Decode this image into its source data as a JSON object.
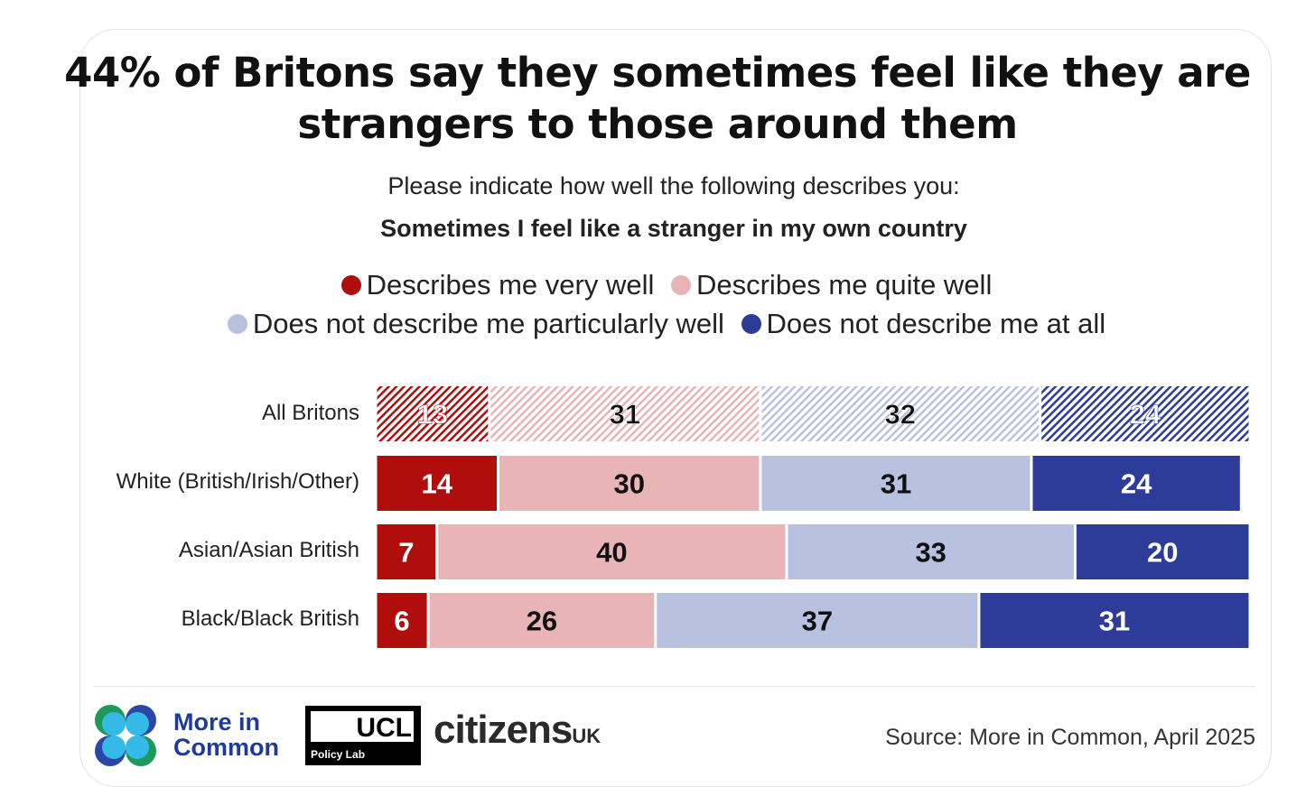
{
  "title_line1": "44% of Britons say they sometimes feel like they are",
  "title_line2": "strangers to those around them",
  "question": "Please indicate how well the following describes you:",
  "statement": "Sometimes I feel like a stranger in my own country",
  "source": "Source: More in Common, April 2025",
  "logos": {
    "mic_line1": "More in",
    "mic_line2": "Common",
    "ucl": "UCL",
    "ucl_sub": "Policy Lab",
    "citizens": "citizens",
    "citizens_uk": "UK"
  },
  "chart_data": {
    "type": "bar",
    "orientation": "horizontal-stacked-100",
    "categories": [
      "All Britons",
      "White (British/Irish/Other)",
      "Asian/Asian British",
      "Black/Black British"
    ],
    "series": [
      {
        "name": "Describes me very well",
        "color": "#b00d0d",
        "label_color": "#ffffff",
        "values": [
          13,
          14,
          7,
          6
        ]
      },
      {
        "name": "Describes me quite well",
        "color": "#e8b4b6",
        "label_color": "#111111",
        "values": [
          31,
          30,
          40,
          26
        ]
      },
      {
        "name": "Does not describe me particularly well",
        "color": "#b9c1e1",
        "label_color": "#111111",
        "values": [
          32,
          31,
          33,
          37
        ]
      },
      {
        "name": "Does not describe me at all",
        "color": "#2d3c98",
        "label_color": "#ffffff",
        "values": [
          24,
          24,
          20,
          31
        ]
      }
    ],
    "hatched_categories": [
      "All Britons"
    ],
    "xlim": [
      0,
      100
    ],
    "legend_placement": "top"
  }
}
